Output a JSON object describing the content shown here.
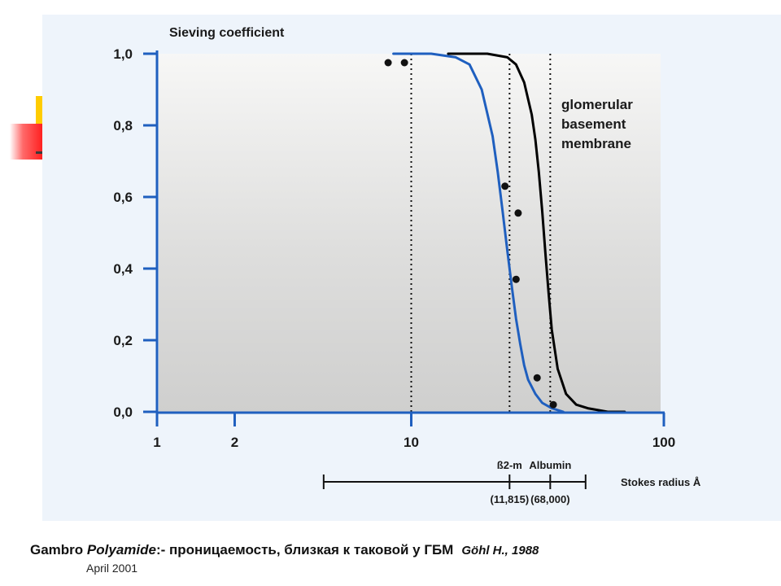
{
  "caption": {
    "brand": "Gambro",
    "product": "Polyamide",
    "text": ":- проницаемость, близкая к таковой у ГБМ",
    "citation": "Göhl H., 1988"
  },
  "footer": {
    "date": "April 2001"
  },
  "chart_data": {
    "type": "line",
    "ylabel": "Sieving coefficient",
    "xscale": "log",
    "xlim": [
      1,
      100
    ],
    "ylim": [
      0,
      1
    ],
    "grid": false,
    "x_ticks": [
      {
        "value": 1,
        "label": "1"
      },
      {
        "value": 2,
        "label": "2"
      },
      {
        "value": 10,
        "label": "10"
      },
      {
        "value": 100,
        "label": "100"
      }
    ],
    "y_ticks": [
      {
        "value": 0,
        "label": "0,0"
      },
      {
        "value": 0.2,
        "label": "0,2"
      },
      {
        "value": 0.4,
        "label": "0,4"
      },
      {
        "value": 0.6,
        "label": "0,6"
      },
      {
        "value": 0.8,
        "label": "0,8"
      },
      {
        "value": 1,
        "label": "1,0"
      }
    ],
    "series": [
      {
        "color": "#1f5fbf",
        "x": [
          8.5,
          12,
          15,
          17,
          19,
          21,
          22,
          23,
          24,
          25,
          26,
          27,
          28,
          29,
          31,
          33,
          36,
          40
        ],
        "y": [
          1.0,
          1.0,
          0.99,
          0.97,
          0.9,
          0.77,
          0.67,
          0.56,
          0.45,
          0.35,
          0.26,
          0.19,
          0.13,
          0.09,
          0.05,
          0.025,
          0.01,
          0.0
        ]
      },
      {
        "name": "glomerular basement membrane",
        "color": "#000000",
        "x": [
          14,
          20,
          24,
          26,
          28,
          30,
          31,
          32,
          33,
          34,
          35,
          36,
          38,
          41,
          45,
          50,
          60,
          70
        ],
        "y": [
          1.0,
          1.0,
          0.99,
          0.97,
          0.92,
          0.83,
          0.76,
          0.67,
          0.56,
          0.44,
          0.33,
          0.23,
          0.12,
          0.05,
          0.02,
          0.01,
          0.0,
          0.0
        ]
      }
    ],
    "points": [
      {
        "x": 8.1,
        "y": 0.975
      },
      {
        "x": 9.4,
        "y": 0.975
      },
      {
        "x": 23.5,
        "y": 0.63
      },
      {
        "x": 26.5,
        "y": 0.555
      },
      {
        "x": 26.0,
        "y": 0.37
      },
      {
        "x": 31.5,
        "y": 0.095
      },
      {
        "x": 36.5,
        "y": 0.02
      }
    ],
    "vertical_lines": [
      10,
      24.5,
      35.5
    ],
    "annotation": [
      "glomerular",
      "basement",
      "membrane"
    ],
    "stokes_ruler": {
      "label": "Stokes radius Å",
      "start": 4.5,
      "end": 49,
      "markers": [
        {
          "x": 24.5,
          "name": "ß2-m",
          "mw": "(11,815)"
        },
        {
          "x": 35.5,
          "name": "Albumin",
          "mw": "(68,000)"
        }
      ]
    }
  }
}
